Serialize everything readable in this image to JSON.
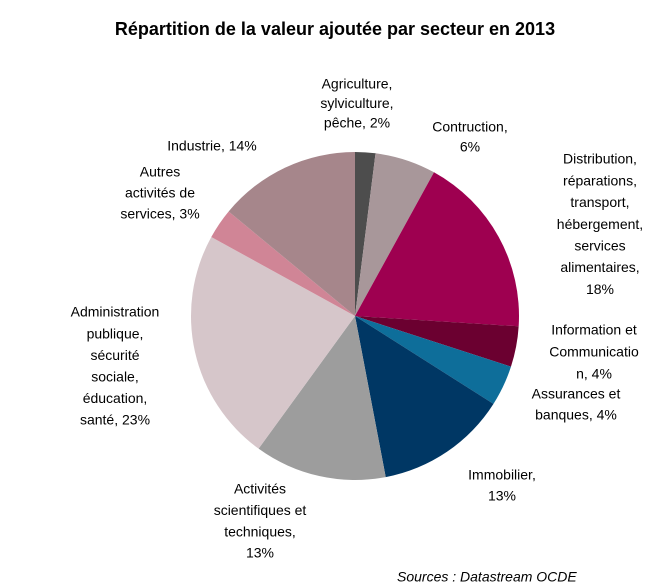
{
  "chart_data": {
    "type": "pie",
    "title": "Répartition de la valeur ajoutée par secteur en 2013",
    "labels": [
      [
        "Agriculture,",
        "sylviculture,",
        "pêche, 2%"
      ],
      [
        "Contruction,",
        "6%"
      ],
      [
        "Distribution,",
        "réparations,",
        "transport,",
        "hébergement,",
        "services",
        "alimentaires,",
        "18%"
      ],
      [
        "Information et",
        "Communicatio",
        "n, 4%"
      ],
      [
        "Assurances et",
        "banques, 4%"
      ],
      [
        "Immobilier,",
        "13%"
      ],
      [
        "Activités",
        "scientifiques et",
        "techniques,",
        "13%"
      ],
      [
        "Administration",
        "publique,",
        "sécurité",
        "sociale,",
        "éducation,",
        "santé, 23%"
      ],
      [
        "Autres",
        "activités de",
        "services, 3%"
      ],
      [
        "Industrie, 14%"
      ]
    ],
    "values": [
      2,
      6,
      18,
      4,
      4,
      13,
      13,
      23,
      3,
      14
    ],
    "colors": [
      "#4d4d4d",
      "#a8979a",
      "#9e0050",
      "#6b0030",
      "#0e6e9a",
      "#003764",
      "#9d9d9d",
      "#d6c6ca",
      "#d08596",
      "#a6868b"
    ],
    "source": "Sources : Datastream OCDE"
  }
}
